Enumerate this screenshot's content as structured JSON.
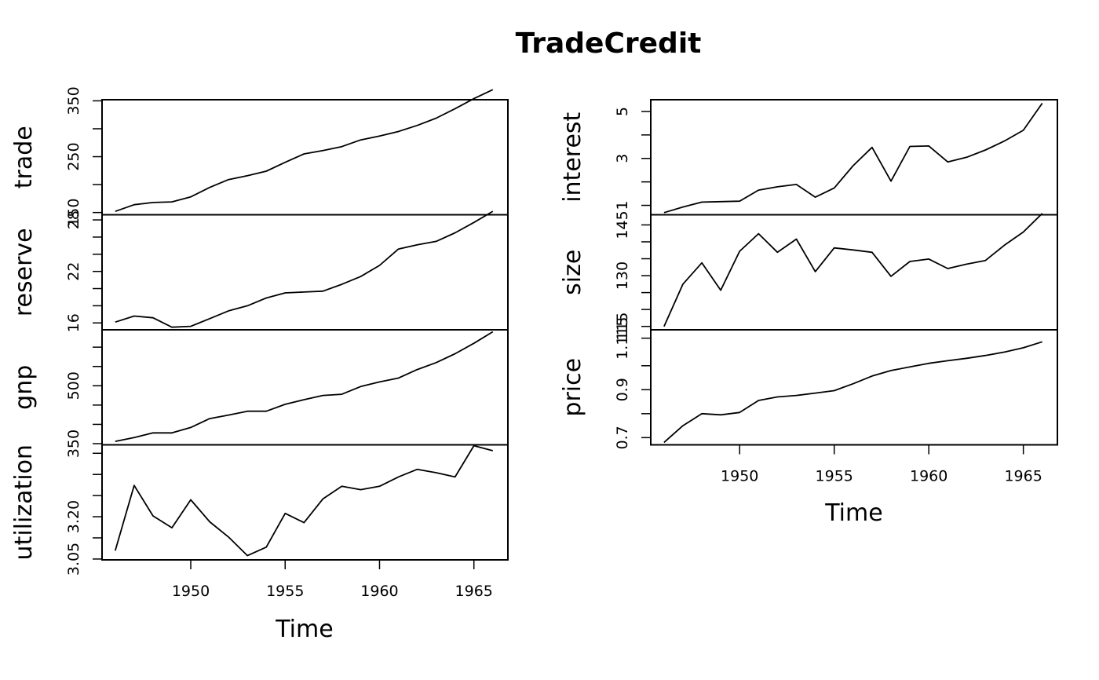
{
  "chart_data": {
    "type": "line",
    "title": "TradeCredit",
    "xlabel": "Time",
    "x": [
      1946,
      1947,
      1948,
      1949,
      1950,
      1951,
      1952,
      1953,
      1954,
      1955,
      1956,
      1957,
      1958,
      1959,
      1960,
      1961,
      1962,
      1963,
      1964,
      1965,
      1966
    ],
    "xticks": [
      1950,
      1955,
      1960,
      1965
    ],
    "xlim": [
      1945.3,
      1966.8
    ],
    "panels": [
      {
        "name": "trade",
        "ylabel": "trade",
        "ylim": [
          146,
          352
        ],
        "yticks": [
          150,
          200,
          250,
          300,
          350
        ],
        "ytick_labels": [
          "150",
          "",
          "250",
          "",
          "350"
        ],
        "values": [
          152,
          164,
          168,
          169,
          178,
          195,
          209,
          216,
          224,
          240,
          255,
          261,
          268,
          280,
          287,
          295,
          306,
          319,
          336,
          354,
          370
        ]
      },
      {
        "name": "reserve",
        "ylabel": "reserve",
        "ylim": [
          15.2,
          28.6
        ],
        "yticks": [
          16,
          18,
          20,
          22,
          24,
          26,
          28
        ],
        "ytick_labels": [
          "16",
          "",
          "",
          "22",
          "",
          "",
          "28"
        ],
        "values": [
          16.1,
          16.8,
          16.6,
          15.5,
          15.6,
          16.5,
          17.4,
          18.0,
          18.9,
          19.5,
          19.6,
          19.7,
          20.5,
          21.4,
          22.7,
          24.6,
          25.1,
          25.5,
          26.5,
          27.7,
          29.0
        ]
      },
      {
        "name": "gnp",
        "ylabel": "gnp",
        "ylim": [
          347,
          645
        ],
        "yticks": [
          350,
          400,
          450,
          500,
          550,
          600
        ],
        "ytick_labels": [
          "350",
          "",
          "",
          "500",
          "",
          ""
        ],
        "values": [
          356,
          366,
          378,
          378,
          392,
          415,
          424,
          434,
          434,
          452,
          464,
          475,
          478,
          498,
          510,
          520,
          542,
          560,
          583,
          610,
          640
        ]
      },
      {
        "name": "utilization",
        "ylabel": "utilization",
        "ylim": [
          3.048,
          3.32
        ],
        "yticks": [
          3.05,
          3.1,
          3.15,
          3.2,
          3.25,
          3.3
        ],
        "ytick_labels": [
          "3.05",
          "",
          "3.20",
          "",
          "",
          ""
        ],
        "values": [
          3.07,
          3.224,
          3.152,
          3.124,
          3.19,
          3.138,
          3.102,
          3.058,
          3.078,
          3.158,
          3.136,
          3.192,
          3.222,
          3.214,
          3.222,
          3.244,
          3.262,
          3.254,
          3.244,
          3.318,
          3.306
        ]
      },
      {
        "name": "interest",
        "ylabel": "interest",
        "ylim": [
          0.6,
          5.5
        ],
        "yticks": [
          1,
          2,
          3,
          4,
          5
        ],
        "ytick_labels": [
          "1",
          "",
          "3",
          "",
          "5"
        ],
        "values": [
          0.69,
          0.93,
          1.14,
          1.16,
          1.18,
          1.65,
          1.79,
          1.89,
          1.35,
          1.74,
          2.69,
          3.47,
          2.03,
          3.51,
          3.53,
          2.85,
          3.05,
          3.36,
          3.74,
          4.2,
          5.35
        ]
      },
      {
        "name": "size",
        "ylabel": "size",
        "ylim": [
          114,
          148
        ],
        "yticks": [
          115,
          120,
          125,
          130,
          135,
          140,
          145
        ],
        "ytick_labels": [
          "115",
          "",
          "",
          "130",
          "",
          "",
          "145"
        ],
        "values": [
          115,
          127.5,
          133.8,
          125.7,
          137.2,
          142.4,
          136.9,
          140.8,
          131.2,
          138.2,
          137.6,
          136.9,
          129.8,
          134.2,
          134.9,
          132.1,
          133.4,
          134.5,
          139.0,
          142.9,
          148.4
        ]
      },
      {
        "name": "price",
        "ylabel": "price",
        "ylim": [
          0.67,
          1.15
        ],
        "yticks": [
          0.7,
          0.8,
          0.9,
          1.0,
          1.115
        ],
        "ytick_labels": [
          "0.7",
          "",
          "0.9",
          "",
          "1.115"
        ],
        "values": [
          0.68,
          0.75,
          0.8,
          0.795,
          0.805,
          0.855,
          0.87,
          0.876,
          0.886,
          0.896,
          0.925,
          0.957,
          0.98,
          0.995,
          1.01,
          1.021,
          1.031,
          1.043,
          1.057,
          1.075,
          1.1
        ]
      }
    ]
  }
}
